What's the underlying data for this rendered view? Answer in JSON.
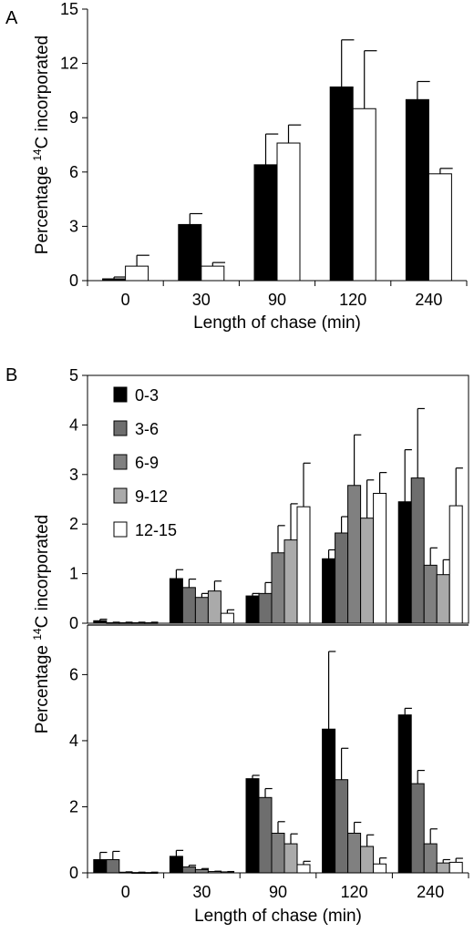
{
  "chart_data": [
    {
      "panel": "A",
      "type": "bar",
      "categories": [
        "0",
        "30",
        "90",
        "120",
        "240"
      ],
      "series": [
        {
          "color": "#000000",
          "values": [
            0.1,
            3.1,
            6.4,
            10.7,
            10.0
          ],
          "errors": [
            0.1,
            0.6,
            1.7,
            2.6,
            1.0
          ]
        },
        {
          "color": "#ffffff",
          "values": [
            0.8,
            0.8,
            7.6,
            9.5,
            5.9
          ],
          "errors": [
            0.6,
            0.2,
            1.0,
            3.2,
            0.3
          ]
        }
      ],
      "xlabel": "Length of chase (min)",
      "ylabel": {
        "pre": "Percentage ",
        "sup": "14",
        "post": "C incorporated"
      },
      "yticks": [
        "0",
        "3",
        "6",
        "9",
        "12",
        "15"
      ],
      "ylim": [
        0,
        15
      ]
    },
    {
      "panel": "B",
      "type": "bar",
      "categories": [
        "0",
        "30",
        "90",
        "120",
        "240"
      ],
      "series": [
        {
          "name": "0-3",
          "color": "#000000",
          "values": [
            0.05,
            0.9,
            0.55,
            1.3,
            2.45
          ],
          "errors": [
            0.03,
            0.18,
            0.05,
            0.18,
            1.05
          ]
        },
        {
          "name": "3-6",
          "color": "#6e6e6e",
          "values": [
            0.01,
            0.72,
            0.6,
            1.82,
            2.93
          ],
          "errors": [
            0.01,
            0.17,
            0.22,
            0.33,
            1.4
          ]
        },
        {
          "name": "6-9",
          "color": "#808080",
          "values": [
            0.01,
            0.52,
            1.42,
            2.78,
            1.17
          ],
          "errors": [
            0.01,
            0.08,
            0.55,
            1.02,
            0.35
          ]
        },
        {
          "name": "9-12",
          "color": "#aaaaaa",
          "values": [
            0.01,
            0.65,
            1.68,
            2.12,
            0.98
          ],
          "errors": [
            0.01,
            0.2,
            0.73,
            0.77,
            0.3
          ]
        },
        {
          "name": "12-15",
          "color": "#ffffff",
          "values": [
            0.01,
            0.2,
            2.35,
            2.62,
            2.37
          ],
          "errors": [
            0.01,
            0.07,
            0.88,
            0.42,
            0.76
          ]
        }
      ],
      "yticks": [
        "0",
        "1",
        "2",
        "3",
        "4",
        "5"
      ],
      "ylim": [
        0,
        5
      ]
    },
    {
      "panel": "B-lower",
      "type": "bar",
      "categories": [
        "0",
        "30",
        "90",
        "120",
        "240"
      ],
      "series": [
        {
          "color": "#000000",
          "values": [
            0.4,
            0.5,
            2.85,
            4.35,
            4.78
          ],
          "errors": [
            0.22,
            0.18,
            0.1,
            2.35,
            0.2
          ]
        },
        {
          "color": "#6e6e6e",
          "values": [
            0.4,
            0.18,
            2.28,
            2.82,
            2.7
          ],
          "errors": [
            0.25,
            0.05,
            0.27,
            0.95,
            0.4
          ]
        },
        {
          "color": "#808080",
          "values": [
            0.02,
            0.1,
            1.2,
            1.2,
            0.88
          ],
          "errors": [
            0.01,
            0.03,
            0.35,
            0.33,
            0.45
          ]
        },
        {
          "color": "#aaaaaa",
          "values": [
            0.01,
            0.04,
            0.88,
            0.8,
            0.3
          ],
          "errors": [
            0.01,
            0.01,
            0.3,
            0.35,
            0.1
          ]
        },
        {
          "color": "#ffffff",
          "values": [
            0.01,
            0.03,
            0.25,
            0.27,
            0.32
          ],
          "errors": [
            0.01,
            0.01,
            0.1,
            0.18,
            0.12
          ]
        }
      ],
      "xlabel": "Length of chase (min)",
      "ylabel": {
        "pre": "Percentage ",
        "sup": "14",
        "post": "C incorporated"
      },
      "yticks": [
        "0",
        "2",
        "4",
        "6"
      ],
      "ylim": [
        0,
        7.5
      ]
    }
  ]
}
